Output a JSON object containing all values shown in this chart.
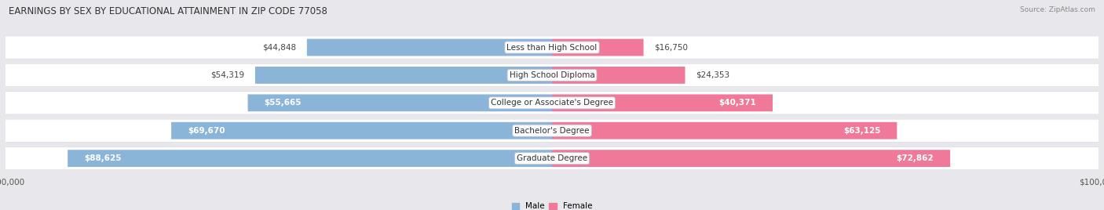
{
  "title": "EARNINGS BY SEX BY EDUCATIONAL ATTAINMENT IN ZIP CODE 77058",
  "source": "Source: ZipAtlas.com",
  "categories": [
    "Less than High School",
    "High School Diploma",
    "College or Associate's Degree",
    "Bachelor's Degree",
    "Graduate Degree"
  ],
  "male_values": [
    44848,
    54319,
    55665,
    69670,
    88625
  ],
  "female_values": [
    16750,
    24353,
    40371,
    63125,
    72862
  ],
  "male_color": "#8ab4d8",
  "female_color": "#f07898",
  "max_value": 100000,
  "bg_color": "#e8e8ec",
  "row_bg_color": "#f4f4f8",
  "label_fontsize": 7.5,
  "title_fontsize": 8.5,
  "source_fontsize": 6.5,
  "axis_label_fontsize": 7.5,
  "male_inside_threshold": 55000,
  "female_inside_threshold": 35000
}
